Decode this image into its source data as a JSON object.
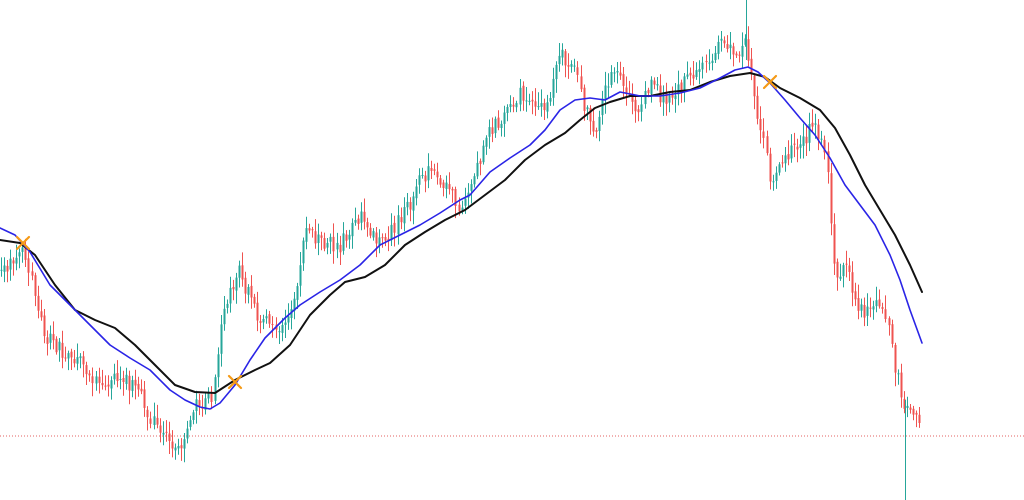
{
  "chart_data": {
    "type": "line",
    "title": "",
    "xlabel": "",
    "ylabel": "",
    "grid": false,
    "ylim": [
      0,
      500
    ],
    "price_waypoints": [
      [
        0,
        270
      ],
      [
        12,
        260
      ],
      [
        22,
        242
      ],
      [
        32,
        285
      ],
      [
        45,
        335
      ],
      [
        60,
        350
      ],
      [
        80,
        360
      ],
      [
        100,
        385
      ],
      [
        120,
        375
      ],
      [
        140,
        395
      ],
      [
        155,
        425
      ],
      [
        170,
        445
      ],
      [
        182,
        440
      ],
      [
        195,
        405
      ],
      [
        212,
        395
      ],
      [
        222,
        310
      ],
      [
        238,
        270
      ],
      [
        258,
        315
      ],
      [
        280,
        335
      ],
      [
        292,
        310
      ],
      [
        305,
        230
      ],
      [
        320,
        240
      ],
      [
        340,
        245
      ],
      [
        360,
        215
      ],
      [
        380,
        245
      ],
      [
        395,
        225
      ],
      [
        408,
        208
      ],
      [
        420,
        180
      ],
      [
        432,
        165
      ],
      [
        450,
        195
      ],
      [
        462,
        210
      ],
      [
        478,
        165
      ],
      [
        490,
        130
      ],
      [
        505,
        115
      ],
      [
        520,
        95
      ],
      [
        540,
        110
      ],
      [
        550,
        100
      ],
      [
        560,
        55
      ],
      [
        575,
        65
      ],
      [
        585,
        110
      ],
      [
        595,
        130
      ],
      [
        605,
        80
      ],
      [
        615,
        75
      ],
      [
        625,
        90
      ],
      [
        635,
        115
      ],
      [
        650,
        85
      ],
      [
        665,
        100
      ],
      [
        680,
        90
      ],
      [
        695,
        70
      ],
      [
        705,
        65
      ],
      [
        720,
        45
      ],
      [
        735,
        55
      ],
      [
        745,
        40
      ],
      [
        755,
        105
      ],
      [
        762,
        135
      ],
      [
        770,
        180
      ],
      [
        780,
        165
      ],
      [
        790,
        150
      ],
      [
        800,
        150
      ],
      [
        812,
        125
      ],
      [
        820,
        135
      ],
      [
        828,
        180
      ],
      [
        835,
        280
      ],
      [
        845,
        260
      ],
      [
        855,
        305
      ],
      [
        865,
        315
      ],
      [
        878,
        300
      ],
      [
        888,
        330
      ],
      [
        895,
        370
      ],
      [
        905,
        410
      ],
      [
        915,
        420
      ],
      [
        922,
        415
      ]
    ],
    "blue_ma_points": [
      [
        0,
        228
      ],
      [
        15,
        235
      ],
      [
        30,
        252
      ],
      [
        50,
        285
      ],
      [
        70,
        305
      ],
      [
        90,
        325
      ],
      [
        110,
        345
      ],
      [
        130,
        358
      ],
      [
        150,
        370
      ],
      [
        170,
        390
      ],
      [
        185,
        400
      ],
      [
        200,
        407
      ],
      [
        210,
        409
      ],
      [
        220,
        403
      ],
      [
        235,
        385
      ],
      [
        250,
        360
      ],
      [
        265,
        338
      ],
      [
        285,
        318
      ],
      [
        300,
        305
      ],
      [
        320,
        292
      ],
      [
        340,
        280
      ],
      [
        360,
        265
      ],
      [
        380,
        245
      ],
      [
        400,
        235
      ],
      [
        420,
        225
      ],
      [
        440,
        213
      ],
      [
        460,
        200
      ],
      [
        470,
        195
      ],
      [
        490,
        172
      ],
      [
        510,
        158
      ],
      [
        530,
        145
      ],
      [
        545,
        130
      ],
      [
        560,
        110
      ],
      [
        575,
        100
      ],
      [
        590,
        98
      ],
      [
        605,
        100
      ],
      [
        620,
        92
      ],
      [
        640,
        96
      ],
      [
        660,
        96
      ],
      [
        680,
        93
      ],
      [
        700,
        88
      ],
      [
        720,
        78
      ],
      [
        735,
        70
      ],
      [
        748,
        67
      ],
      [
        758,
        72
      ],
      [
        770,
        83
      ],
      [
        785,
        100
      ],
      [
        800,
        118
      ],
      [
        815,
        135
      ],
      [
        830,
        158
      ],
      [
        845,
        185
      ],
      [
        860,
        205
      ],
      [
        875,
        225
      ],
      [
        890,
        255
      ],
      [
        900,
        280
      ],
      [
        910,
        310
      ],
      [
        922,
        343
      ]
    ],
    "black_ma_points": [
      [
        0,
        240
      ],
      [
        20,
        243
      ],
      [
        35,
        255
      ],
      [
        55,
        285
      ],
      [
        75,
        310
      ],
      [
        95,
        320
      ],
      [
        115,
        328
      ],
      [
        135,
        345
      ],
      [
        155,
        365
      ],
      [
        175,
        385
      ],
      [
        195,
        392
      ],
      [
        215,
        393
      ],
      [
        235,
        380
      ],
      [
        255,
        370
      ],
      [
        270,
        363
      ],
      [
        290,
        345
      ],
      [
        310,
        315
      ],
      [
        330,
        295
      ],
      [
        345,
        282
      ],
      [
        365,
        277
      ],
      [
        385,
        265
      ],
      [
        405,
        245
      ],
      [
        425,
        232
      ],
      [
        445,
        220
      ],
      [
        465,
        210
      ],
      [
        485,
        195
      ],
      [
        505,
        180
      ],
      [
        525,
        160
      ],
      [
        545,
        145
      ],
      [
        565,
        133
      ],
      [
        580,
        120
      ],
      [
        595,
        108
      ],
      [
        610,
        102
      ],
      [
        630,
        96
      ],
      [
        650,
        96
      ],
      [
        670,
        92
      ],
      [
        690,
        90
      ],
      [
        710,
        82
      ],
      [
        730,
        76
      ],
      [
        750,
        73
      ],
      [
        765,
        77
      ],
      [
        780,
        88
      ],
      [
        800,
        98
      ],
      [
        820,
        110
      ],
      [
        835,
        128
      ],
      [
        850,
        155
      ],
      [
        865,
        185
      ],
      [
        880,
        210
      ],
      [
        895,
        235
      ],
      [
        910,
        265
      ],
      [
        922,
        292
      ]
    ],
    "crossovers": [
      [
        23,
        243
      ],
      [
        235,
        382
      ],
      [
        770,
        82
      ]
    ],
    "price_line_level": 436,
    "colors": {
      "up": "#26a69a",
      "down": "#ef5350",
      "fast_ma": "#2a24e6",
      "slow_ma": "#111111",
      "crossover": "#f59a16",
      "price_line": "#e05050",
      "background": "#ffffff"
    }
  }
}
